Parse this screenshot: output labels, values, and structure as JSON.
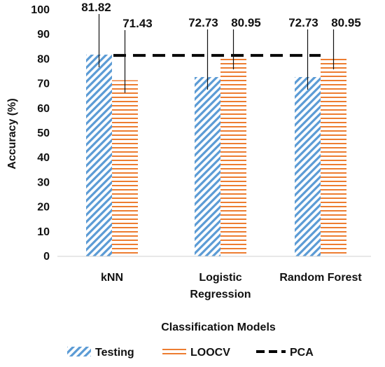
{
  "chart_data": {
    "type": "bar",
    "xlabel": "Classification Models",
    "ylabel": "Accuracy (%)",
    "ylim": [
      0,
      100
    ],
    "yticks": [
      0,
      10,
      20,
      30,
      40,
      50,
      60,
      70,
      80,
      90,
      100
    ],
    "categories": [
      [
        "kNN"
      ],
      [
        "Logistic",
        "Regression"
      ],
      [
        "Random Forest"
      ]
    ],
    "series": [
      {
        "name": "Testing",
        "values": [
          81.82,
          72.73,
          72.73
        ],
        "labels": [
          "81.82",
          "72.73",
          "72.73"
        ],
        "pattern": "diagonal-hatch",
        "color": "#5b9bd5"
      },
      {
        "name": "LOOCV",
        "values": [
          71.43,
          80.95,
          80.95
        ],
        "labels": [
          "71.43",
          "80.95",
          "80.95"
        ],
        "pattern": "horizontal-lines",
        "color": "#ed7d31"
      }
    ],
    "reference_line": {
      "name": "PCA",
      "value": 81.5,
      "style": "dashed",
      "color": "#000000"
    },
    "grid": false,
    "legend": "bottom"
  }
}
